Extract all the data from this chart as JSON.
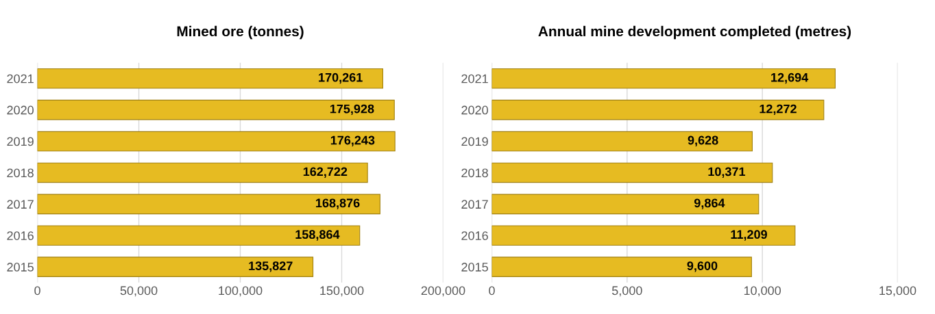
{
  "chart_data": [
    {
      "type": "bar",
      "orientation": "horizontal",
      "title": "Mined ore (tonnes)",
      "categories": [
        "2021",
        "2020",
        "2019",
        "2018",
        "2017",
        "2016",
        "2015"
      ],
      "values": [
        170261,
        175928,
        176243,
        162722,
        168876,
        158864,
        135827
      ],
      "value_labels": [
        "170,261",
        "175,928",
        "176,243",
        "162,722",
        "168,876",
        "158,864",
        "135,827"
      ],
      "color": "#e6bb22",
      "xlim": [
        0,
        200000
      ],
      "xticks": [
        0,
        {
          "value": 50000,
          "label": "50,000"
        },
        {
          "value": 100000,
          "label": "100,000"
        },
        {
          "value": 150000,
          "label": "150,000"
        },
        {
          "value": 200000,
          "label": "200,000"
        }
      ],
      "grid": "x",
      "legend": false
    },
    {
      "type": "bar",
      "orientation": "horizontal",
      "title": "Annual mine development completed (metres)",
      "categories": [
        "2021",
        "2020",
        "2019",
        "2018",
        "2017",
        "2016",
        "2015"
      ],
      "values": [
        12694,
        12272,
        9628,
        10371,
        9864,
        11209,
        9600
      ],
      "value_labels": [
        "12,694",
        "12,272",
        "9,628",
        "10,371",
        "9,864",
        "11,209",
        "9,600"
      ],
      "color": "#e6bb22",
      "xlim": [
        0,
        15000
      ],
      "xticks": [
        0,
        {
          "value": 5000,
          "label": "5,000"
        },
        {
          "value": 10000,
          "label": "10,000"
        },
        {
          "value": 15000,
          "label": "15,000"
        }
      ],
      "grid": "x",
      "legend": false
    }
  ]
}
